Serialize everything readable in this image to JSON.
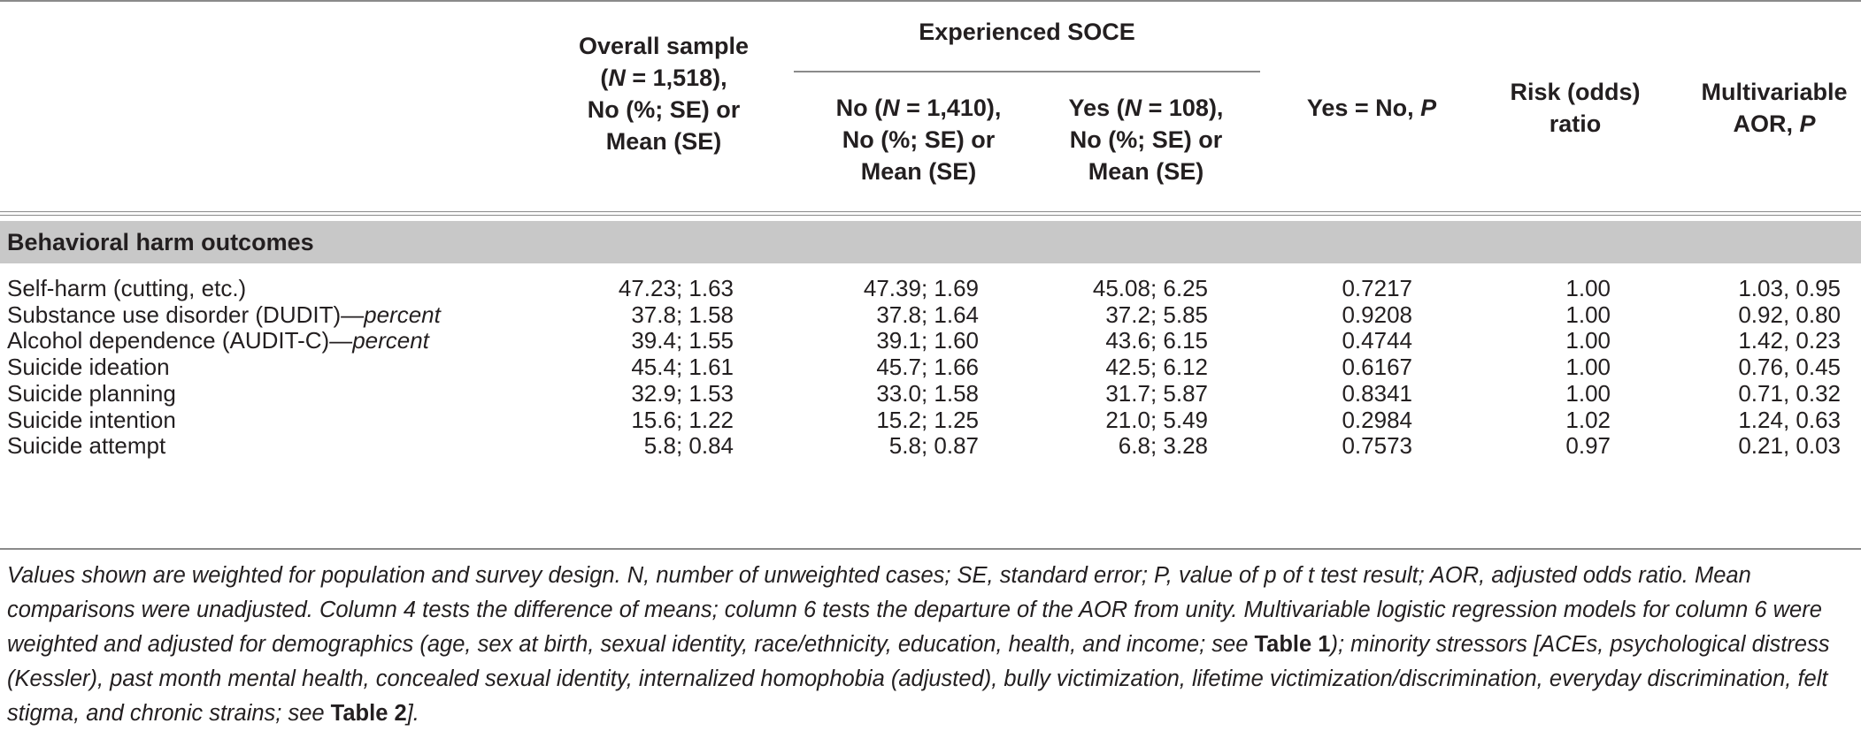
{
  "table": {
    "headers": {
      "overall": "Overall sample\n(N = 1,518),\nNo (%; SE) or\nMean (SE)",
      "group": "Experienced SOCE",
      "no": "No (N = 1,410),\nNo (%; SE) or\nMean (SE)",
      "yes": "Yes (N = 108),\nNo (%; SE) or\nMean (SE)",
      "yesno": "Yes = No, P",
      "risk": "Risk (odds)\nratio",
      "aor": "Multivariable\nAOR, P"
    },
    "section": "Behavioral harm outcomes",
    "rows": [
      {
        "label": "Self-harm (cutting, etc.)",
        "overall": "47.23; 1.63",
        "no": "47.39; 1.69",
        "yes": "45.08; 6.25",
        "yesno": "0.7217",
        "risk": "1.00",
        "aor": "1.03, 0.95"
      },
      {
        "label": "Substance use disorder (DUDIT)—percent",
        "overall": "37.8; 1.58",
        "no": "37.8; 1.64",
        "yes": "37.2; 5.85",
        "yesno": "0.9208",
        "risk": "1.00",
        "aor": "0.92, 0.80"
      },
      {
        "label": "Alcohol dependence (AUDIT-C)—percent",
        "overall": "39.4; 1.55",
        "no": "39.1; 1.60",
        "yes": "43.6; 6.15",
        "yesno": "0.4744",
        "risk": "1.00",
        "aor": "1.42, 0.23"
      },
      {
        "label": "Suicide ideation",
        "overall": "45.4; 1.61",
        "no": "45.7; 1.66",
        "yes": "42.5; 6.12",
        "yesno": "0.6167",
        "risk": "1.00",
        "aor": "0.76, 0.45"
      },
      {
        "label": "Suicide planning",
        "overall": "32.9; 1.53",
        "no": "33.0; 1.58",
        "yes": "31.7; 5.87",
        "yesno": "0.8341",
        "risk": "1.00",
        "aor": "0.71, 0.32"
      },
      {
        "label": "Suicide intention",
        "overall": "15.6; 1.22",
        "no": "15.2; 1.25",
        "yes": "21.0; 5.49",
        "yesno": "0.2984",
        "risk": "1.02",
        "aor": "1.24, 0.63"
      },
      {
        "label": "Suicide attempt",
        "overall": "5.8; 0.84",
        "no": "5.8; 0.87",
        "yes": "6.8; 3.28",
        "yesno": "0.7573",
        "risk": "0.97",
        "aor": "0.21, 0.03"
      }
    ],
    "footnote": {
      "part1": "Values shown are weighted for population and survey design. N, number of unweighted cases; SE, standard error; P, value of p of t test result; AOR, adjusted odds ratio. Mean comparisons were unadjusted. Column 4 tests the difference of means; column 6 tests the departure of the AOR from unity. Multivariable logistic regression models for column 6 were weighted and adjusted for demographics (age, sex at birth, sexual identity, race/ethnicity, education, health, and income; see ",
      "ref1": "Table 1",
      "part2": "); minority stressors [ACEs, psychological distress (Kessler), past month mental health, concealed sexual identity, internalized homophobia (adjusted), bully victimization, lifetime victimization/discrimination, everyday discrimination, felt stigma, and chronic strains; see ",
      "ref2": "Table 2",
      "part3": "]."
    }
  },
  "colors": {
    "rule": "#8a8a8a",
    "section_band": "#c8c8c8",
    "text": "#231f20"
  }
}
